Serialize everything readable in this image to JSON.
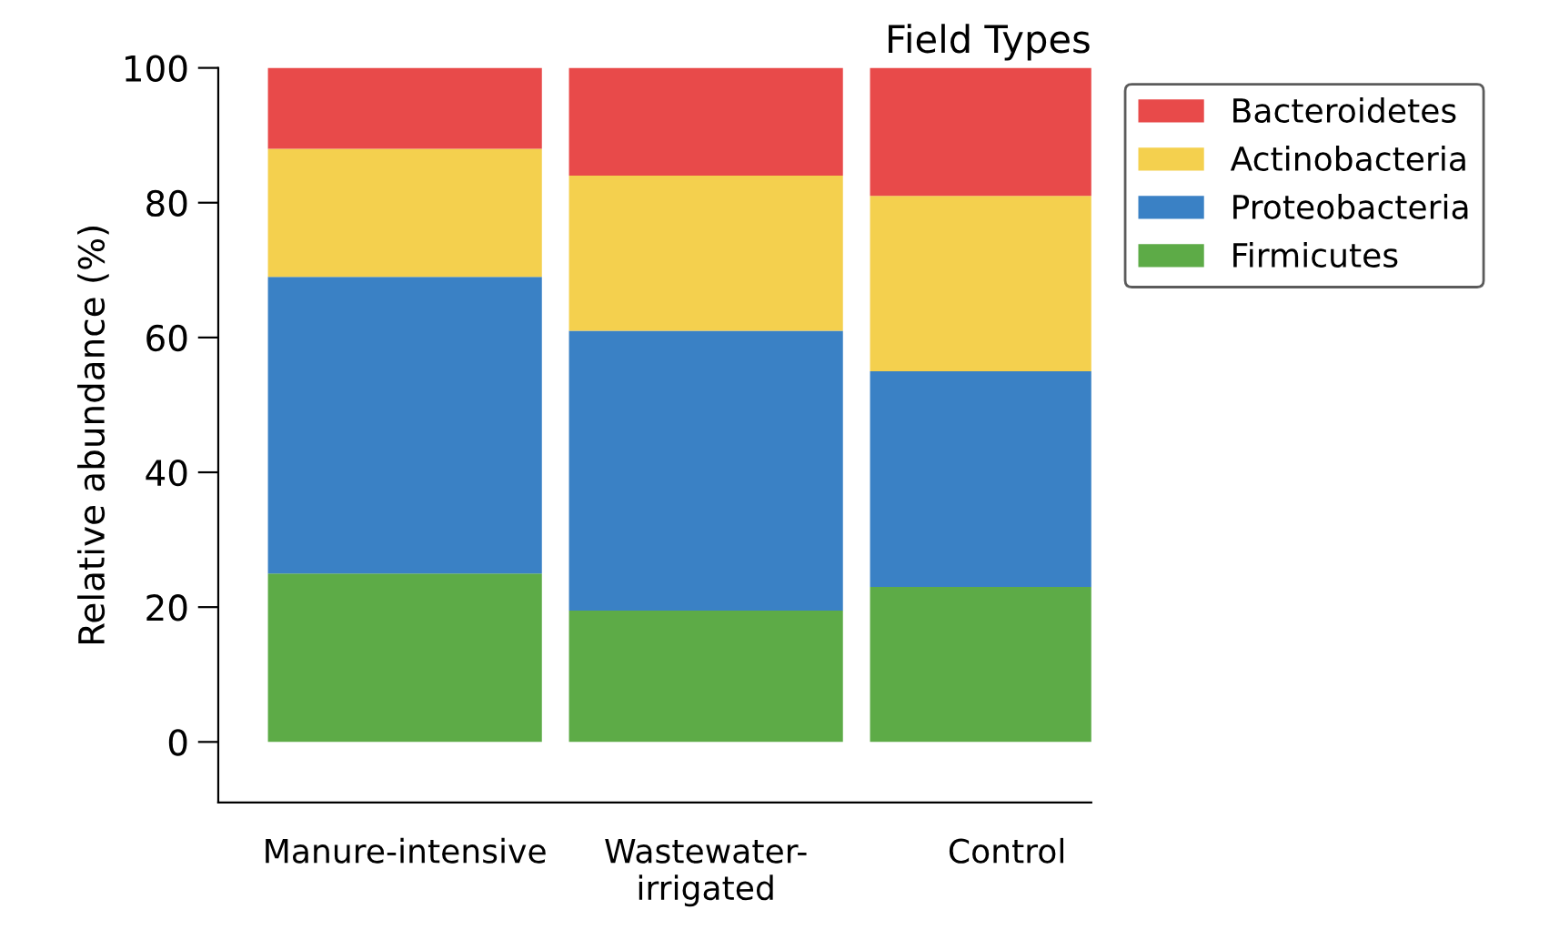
{
  "chart_data": {
    "type": "bar",
    "title": "Field Types",
    "ylabel": "Relative abundance (%)",
    "categories": [
      "Manure-intensive",
      "Wastewater-\nirrigated",
      "Control"
    ],
    "stacked": true,
    "series": [
      {
        "name": "Firmicutes",
        "color": "#5dab47",
        "values": [
          25,
          19.5,
          23
        ]
      },
      {
        "name": "Proteobacteria",
        "color": "#3a81c5",
        "values": [
          44,
          41.5,
          32
        ]
      },
      {
        "name": "Actinobacteria",
        "color": "#f4d04e",
        "values": [
          19,
          23,
          26
        ]
      },
      {
        "name": "Bacteroidetes",
        "color": "#e84a4a",
        "values": [
          12,
          16,
          19
        ]
      }
    ],
    "ylim": [
      -9,
      100
    ],
    "yticks": [
      0,
      20,
      40,
      60,
      80,
      100
    ],
    "grid": false,
    "legend": "right"
  }
}
